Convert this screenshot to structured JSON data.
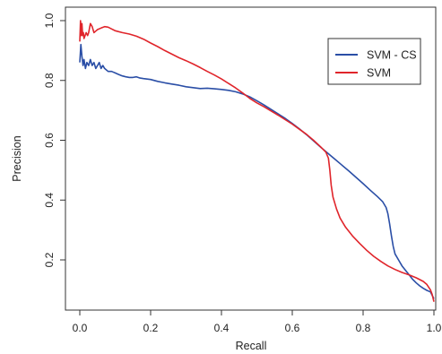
{
  "chart_data": {
    "type": "line",
    "xlabel": "Recall",
    "ylabel": "Precision",
    "xlim": [
      0,
      1
    ],
    "ylim": [
      0.05,
      1.02
    ],
    "xticks": [
      "0.0",
      "0.2",
      "0.4",
      "0.6",
      "0.8",
      "1.0"
    ],
    "yticks": [
      "0.2",
      "0.4",
      "0.6",
      "0.8",
      "1.0"
    ],
    "grid": false,
    "legend_position": "top-right",
    "series": [
      {
        "name": "SVM - CS",
        "color": "#2a4ea6",
        "points": [
          [
            0.0,
            0.86
          ],
          [
            0.003,
            0.92
          ],
          [
            0.006,
            0.88
          ],
          [
            0.009,
            0.85
          ],
          [
            0.012,
            0.87
          ],
          [
            0.016,
            0.84
          ],
          [
            0.02,
            0.86
          ],
          [
            0.025,
            0.85
          ],
          [
            0.03,
            0.87
          ],
          [
            0.035,
            0.85
          ],
          [
            0.04,
            0.86
          ],
          [
            0.045,
            0.84
          ],
          [
            0.05,
            0.85
          ],
          [
            0.055,
            0.86
          ],
          [
            0.06,
            0.84
          ],
          [
            0.065,
            0.85
          ],
          [
            0.07,
            0.84
          ],
          [
            0.08,
            0.83
          ],
          [
            0.09,
            0.83
          ],
          [
            0.1,
            0.825
          ],
          [
            0.11,
            0.82
          ],
          [
            0.12,
            0.815
          ],
          [
            0.13,
            0.812
          ],
          [
            0.14,
            0.81
          ],
          [
            0.15,
            0.81
          ],
          [
            0.16,
            0.812
          ],
          [
            0.17,
            0.808
          ],
          [
            0.18,
            0.806
          ],
          [
            0.2,
            0.803
          ],
          [
            0.22,
            0.797
          ],
          [
            0.24,
            0.792
          ],
          [
            0.26,
            0.788
          ],
          [
            0.28,
            0.784
          ],
          [
            0.3,
            0.779
          ],
          [
            0.32,
            0.776
          ],
          [
            0.34,
            0.773
          ],
          [
            0.36,
            0.774
          ],
          [
            0.38,
            0.772
          ],
          [
            0.4,
            0.77
          ],
          [
            0.42,
            0.767
          ],
          [
            0.44,
            0.762
          ],
          [
            0.46,
            0.755
          ],
          [
            0.48,
            0.745
          ],
          [
            0.5,
            0.732
          ],
          [
            0.52,
            0.718
          ],
          [
            0.54,
            0.703
          ],
          [
            0.56,
            0.688
          ],
          [
            0.58,
            0.673
          ],
          [
            0.6,
            0.656
          ],
          [
            0.62,
            0.638
          ],
          [
            0.64,
            0.619
          ],
          [
            0.66,
            0.598
          ],
          [
            0.68,
            0.577
          ],
          [
            0.7,
            0.557
          ],
          [
            0.72,
            0.537
          ],
          [
            0.74,
            0.517
          ],
          [
            0.76,
            0.497
          ],
          [
            0.78,
            0.476
          ],
          [
            0.8,
            0.455
          ],
          [
            0.82,
            0.433
          ],
          [
            0.84,
            0.412
          ],
          [
            0.855,
            0.395
          ],
          [
            0.865,
            0.375
          ],
          [
            0.87,
            0.355
          ],
          [
            0.875,
            0.32
          ],
          [
            0.88,
            0.28
          ],
          [
            0.885,
            0.245
          ],
          [
            0.89,
            0.22
          ],
          [
            0.9,
            0.2
          ],
          [
            0.91,
            0.18
          ],
          [
            0.92,
            0.165
          ],
          [
            0.93,
            0.15
          ],
          [
            0.94,
            0.135
          ],
          [
            0.95,
            0.123
          ],
          [
            0.96,
            0.113
          ],
          [
            0.97,
            0.105
          ],
          [
            0.98,
            0.098
          ],
          [
            0.99,
            0.093
          ],
          [
            1.0,
            0.07
          ]
        ]
      },
      {
        "name": "SVM",
        "color": "#e0252b",
        "points": [
          [
            0.0,
            0.93
          ],
          [
            0.002,
            1.0
          ],
          [
            0.004,
            0.95
          ],
          [
            0.006,
            0.99
          ],
          [
            0.008,
            0.95
          ],
          [
            0.01,
            0.96
          ],
          [
            0.012,
            0.94
          ],
          [
            0.015,
            0.95
          ],
          [
            0.018,
            0.96
          ],
          [
            0.022,
            0.95
          ],
          [
            0.025,
            0.96
          ],
          [
            0.03,
            0.99
          ],
          [
            0.035,
            0.98
          ],
          [
            0.04,
            0.96
          ],
          [
            0.045,
            0.965
          ],
          [
            0.05,
            0.97
          ],
          [
            0.06,
            0.975
          ],
          [
            0.07,
            0.98
          ],
          [
            0.08,
            0.978
          ],
          [
            0.09,
            0.972
          ],
          [
            0.1,
            0.966
          ],
          [
            0.12,
            0.96
          ],
          [
            0.14,
            0.955
          ],
          [
            0.16,
            0.948
          ],
          [
            0.18,
            0.938
          ],
          [
            0.2,
            0.925
          ],
          [
            0.22,
            0.913
          ],
          [
            0.24,
            0.9
          ],
          [
            0.26,
            0.888
          ],
          [
            0.28,
            0.876
          ],
          [
            0.3,
            0.866
          ],
          [
            0.32,
            0.855
          ],
          [
            0.34,
            0.843
          ],
          [
            0.36,
            0.83
          ],
          [
            0.38,
            0.818
          ],
          [
            0.4,
            0.805
          ],
          [
            0.42,
            0.79
          ],
          [
            0.44,
            0.775
          ],
          [
            0.46,
            0.758
          ],
          [
            0.48,
            0.74
          ],
          [
            0.5,
            0.725
          ],
          [
            0.52,
            0.712
          ],
          [
            0.54,
            0.698
          ],
          [
            0.56,
            0.684
          ],
          [
            0.58,
            0.669
          ],
          [
            0.6,
            0.654
          ],
          [
            0.62,
            0.637
          ],
          [
            0.64,
            0.62
          ],
          [
            0.66,
            0.6
          ],
          [
            0.68,
            0.578
          ],
          [
            0.695,
            0.56
          ],
          [
            0.702,
            0.54
          ],
          [
            0.706,
            0.5
          ],
          [
            0.71,
            0.45
          ],
          [
            0.715,
            0.41
          ],
          [
            0.725,
            0.37
          ],
          [
            0.735,
            0.34
          ],
          [
            0.75,
            0.31
          ],
          [
            0.77,
            0.28
          ],
          [
            0.79,
            0.255
          ],
          [
            0.81,
            0.232
          ],
          [
            0.83,
            0.212
          ],
          [
            0.85,
            0.195
          ],
          [
            0.87,
            0.18
          ],
          [
            0.89,
            0.168
          ],
          [
            0.91,
            0.158
          ],
          [
            0.93,
            0.15
          ],
          [
            0.95,
            0.14
          ],
          [
            0.97,
            0.128
          ],
          [
            0.98,
            0.118
          ],
          [
            0.99,
            0.1
          ],
          [
            0.995,
            0.085
          ],
          [
            1.0,
            0.06
          ]
        ]
      }
    ]
  }
}
